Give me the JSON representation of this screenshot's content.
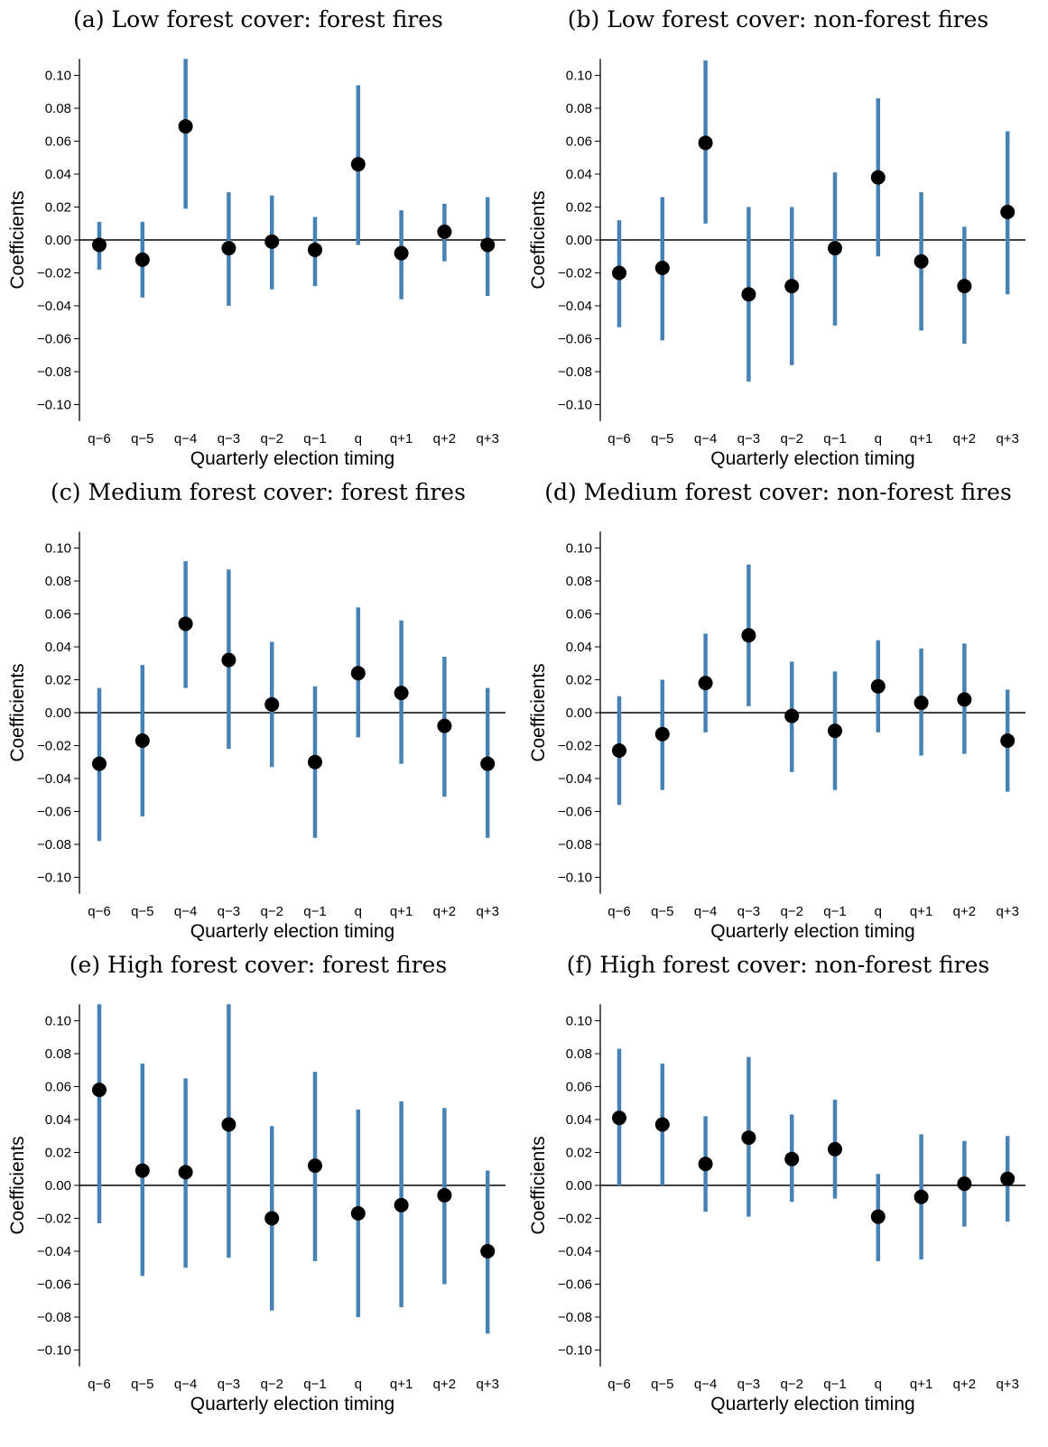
{
  "style": {
    "ci_color": "#4682b4",
    "point_color": "#000000",
    "zero_line_color": "#000000"
  },
  "chart_data": [
    {
      "type": "scatter",
      "title": "(a) Low forest cover: forest fires",
      "xlabel": "Quarterly election timing",
      "ylabel": "Coefficients",
      "categories": [
        "q−6",
        "q−5",
        "q−4",
        "q−3",
        "q−2",
        "q−1",
        "q",
        "q+1",
        "q+2",
        "q+3"
      ],
      "ylim": [
        -0.11,
        0.11
      ],
      "yticks": [
        "0.10",
        "0.08",
        "0.06",
        "0.04",
        "0.02",
        "0.00",
        "−0.02",
        "−0.04",
        "−0.06",
        "−0.08",
        "−0.10"
      ],
      "values": [
        -0.003,
        -0.012,
        0.069,
        -0.005,
        -0.001,
        -0.006,
        0.046,
        -0.008,
        0.005,
        -0.003
      ],
      "ci_low": [
        -0.018,
        -0.035,
        0.019,
        -0.04,
        -0.03,
        -0.028,
        -0.003,
        -0.036,
        -0.013,
        -0.034
      ],
      "ci_high": [
        0.011,
        0.011,
        0.11,
        0.029,
        0.027,
        0.014,
        0.094,
        0.018,
        0.022,
        0.026
      ],
      "grid": false
    },
    {
      "type": "scatter",
      "title": "(b) Low forest cover: non-forest fires",
      "xlabel": "Quarterly election timing",
      "ylabel": "Coefficients",
      "categories": [
        "q−6",
        "q−5",
        "q−4",
        "q−3",
        "q−2",
        "q−1",
        "q",
        "q+1",
        "q+2",
        "q+3"
      ],
      "ylim": [
        -0.11,
        0.11
      ],
      "yticks": [
        "0.10",
        "0.08",
        "0.06",
        "0.04",
        "0.02",
        "0.00",
        "−0.02",
        "−0.04",
        "−0.06",
        "−0.08",
        "−0.10"
      ],
      "values": [
        -0.02,
        -0.017,
        0.059,
        -0.033,
        -0.028,
        -0.005,
        0.038,
        -0.013,
        -0.028,
        0.017
      ],
      "ci_low": [
        -0.053,
        -0.061,
        0.01,
        -0.086,
        -0.076,
        -0.052,
        -0.01,
        -0.055,
        -0.063,
        -0.033
      ],
      "ci_high": [
        0.012,
        0.026,
        0.109,
        0.02,
        0.02,
        0.041,
        0.086,
        0.029,
        0.008,
        0.066
      ],
      "grid": false
    },
    {
      "type": "scatter",
      "title": "(c) Medium forest cover: forest fires",
      "xlabel": "Quarterly election timing",
      "ylabel": "Coefficients",
      "categories": [
        "q−6",
        "q−5",
        "q−4",
        "q−3",
        "q−2",
        "q−1",
        "q",
        "q+1",
        "q+2",
        "q+3"
      ],
      "ylim": [
        -0.11,
        0.11
      ],
      "yticks": [
        "0.10",
        "0.08",
        "0.06",
        "0.04",
        "0.02",
        "0.00",
        "−0.02",
        "−0.04",
        "−0.06",
        "−0.08",
        "−0.10"
      ],
      "values": [
        -0.031,
        -0.017,
        0.054,
        0.032,
        0.005,
        -0.03,
        0.024,
        0.012,
        -0.008,
        -0.031
      ],
      "ci_low": [
        -0.078,
        -0.063,
        0.015,
        -0.022,
        -0.033,
        -0.076,
        -0.015,
        -0.031,
        -0.051,
        -0.076
      ],
      "ci_high": [
        0.015,
        0.029,
        0.092,
        0.087,
        0.043,
        0.016,
        0.064,
        0.056,
        0.034,
        0.015
      ],
      "grid": false
    },
    {
      "type": "scatter",
      "title": "(d) Medium forest cover: non-forest fires",
      "xlabel": "Quarterly election timing",
      "ylabel": "Coefficients",
      "categories": [
        "q−6",
        "q−5",
        "q−4",
        "q−3",
        "q−2",
        "q−1",
        "q",
        "q+1",
        "q+2",
        "q+3"
      ],
      "ylim": [
        -0.11,
        0.11
      ],
      "yticks": [
        "0.10",
        "0.08",
        "0.06",
        "0.04",
        "0.02",
        "0.00",
        "−0.02",
        "−0.04",
        "−0.06",
        "−0.08",
        "−0.10"
      ],
      "values": [
        -0.023,
        -0.013,
        0.018,
        0.047,
        -0.002,
        -0.011,
        0.016,
        0.006,
        0.008,
        -0.017
      ],
      "ci_low": [
        -0.056,
        -0.047,
        -0.012,
        0.004,
        -0.036,
        -0.047,
        -0.012,
        -0.026,
        -0.025,
        -0.048
      ],
      "ci_high": [
        0.01,
        0.02,
        0.048,
        0.09,
        0.031,
        0.025,
        0.044,
        0.039,
        0.042,
        0.014
      ],
      "grid": false
    },
    {
      "type": "scatter",
      "title": "(e) High forest cover: forest fires",
      "xlabel": "Quarterly election timing",
      "ylabel": "Coefficients",
      "categories": [
        "q−6",
        "q−5",
        "q−4",
        "q−3",
        "q−2",
        "q−1",
        "q",
        "q+1",
        "q+2",
        "q+3"
      ],
      "ylim": [
        -0.11,
        0.11
      ],
      "yticks": [
        "0.10",
        "0.08",
        "0.06",
        "0.04",
        "0.02",
        "0.00",
        "−0.02",
        "−0.04",
        "−0.06",
        "−0.08",
        "−0.10"
      ],
      "values": [
        0.058,
        0.009,
        0.008,
        0.037,
        -0.02,
        0.012,
        -0.017,
        -0.012,
        -0.006,
        -0.04
      ],
      "ci_low": [
        -0.023,
        -0.055,
        -0.05,
        -0.044,
        -0.076,
        -0.046,
        -0.08,
        -0.074,
        -0.06,
        -0.09
      ],
      "ci_high": [
        0.11,
        0.074,
        0.065,
        0.11,
        0.036,
        0.069,
        0.046,
        0.051,
        0.047,
        0.009
      ],
      "grid": false
    },
    {
      "type": "scatter",
      "title": "(f) High forest cover: non-forest fires",
      "xlabel": "Quarterly election timing",
      "ylabel": "Coefficients",
      "categories": [
        "q−6",
        "q−5",
        "q−4",
        "q−3",
        "q−2",
        "q−1",
        "q",
        "q+1",
        "q+2",
        "q+3"
      ],
      "ylim": [
        -0.11,
        0.11
      ],
      "yticks": [
        "0.10",
        "0.08",
        "0.06",
        "0.04",
        "0.02",
        "0.00",
        "−0.02",
        "−0.04",
        "−0.06",
        "−0.08",
        "−0.10"
      ],
      "values": [
        0.041,
        0.037,
        0.013,
        0.029,
        0.016,
        0.022,
        -0.019,
        -0.007,
        0.001,
        0.004
      ],
      "ci_low": [
        0.0,
        0.0,
        -0.016,
        -0.019,
        -0.01,
        -0.008,
        -0.046,
        -0.045,
        -0.025,
        -0.022
      ],
      "ci_high": [
        0.083,
        0.074,
        0.042,
        0.078,
        0.043,
        0.052,
        0.007,
        0.031,
        0.027,
        0.03
      ],
      "grid": false
    }
  ]
}
